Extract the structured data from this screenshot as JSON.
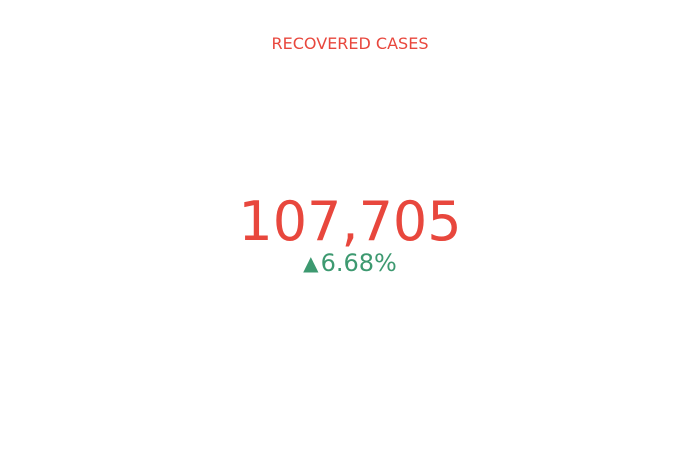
{
  "chart_data": {
    "type": "indicator",
    "title": "RECOVERED CASES",
    "value": 107705,
    "value_text": "107,705",
    "delta": {
      "direction": "increasing",
      "arrow": "▲",
      "relative_percent": 6.68,
      "text": "6.68%"
    }
  },
  "colors": {
    "title": "#e8473d",
    "value": "#e8473d",
    "delta_increasing": "#3d9970",
    "background": "#ffffff"
  }
}
